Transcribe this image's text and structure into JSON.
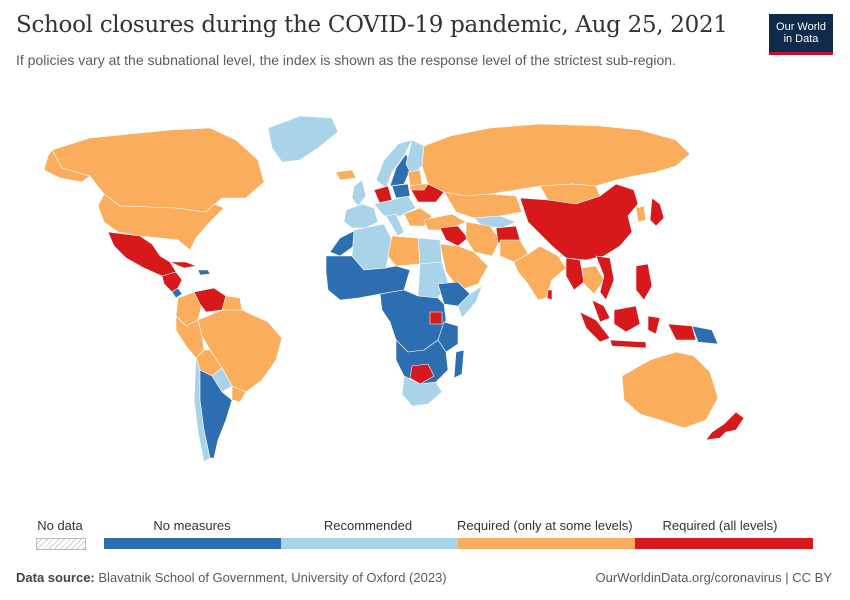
{
  "title": "School closures during the COVID-19 pandemic, Aug 25, 2021",
  "subtitle": "If policies vary at the subnational level, the index is shown as the response level of the strictest sub-region.",
  "logo": {
    "line1": "Our World",
    "line2": "in Data"
  },
  "legend": {
    "no_data_label": "No data",
    "bins": [
      {
        "label": "No measures",
        "color": "#2c6eb0"
      },
      {
        "label": "Recommended",
        "color": "#a8d3e8"
      },
      {
        "label": "Required (only at some levels)",
        "color": "#f9ad5d"
      },
      {
        "label": "Required (all levels)",
        "color": "#d7191c"
      }
    ]
  },
  "footer": {
    "source_label": "Data source:",
    "source_text": " Blavatnik School of Government, University of Oxford (2023)",
    "link_text": "OurWorldinData.org/coronavirus | CC BY"
  },
  "colors": {
    "no_measures": "#2c6eb0",
    "recommended": "#a8d3e8",
    "required_some": "#f9ad5d",
    "required_all": "#d7191c",
    "border": "#ffffff"
  }
}
